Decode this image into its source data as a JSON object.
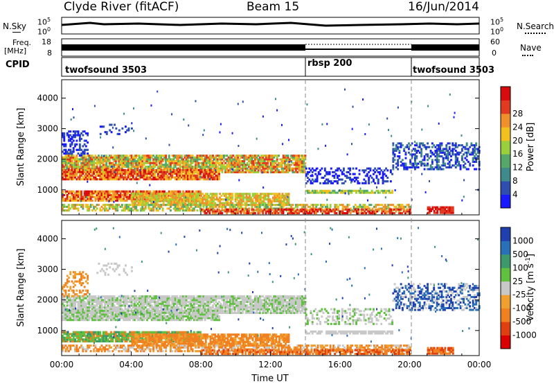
{
  "header": {
    "station": "Clyde River (fitACF)",
    "beam": "Beam 15",
    "date": "16/Jun/2014"
  },
  "left_labels": {
    "nsky": "N.Sky",
    "freq_top": "Freq.",
    "freq_unit": "[MHz]",
    "cpid": "CPID",
    "nsky_tick_top": "10^5",
    "nsky_tick_bottom": "10^0",
    "freq_tick_top": "18",
    "freq_tick_bottom": "8"
  },
  "right_labels": {
    "nsearch": "N.Search",
    "nave": "Nave",
    "nsearch_tick_top": "10^5",
    "nsearch_tick_bottom": "10^0",
    "nave_tick_top": "60",
    "nave_tick_bottom": "0"
  },
  "cpid_segments": [
    {
      "label": "twofsound 3503",
      "start_hour": 0
    },
    {
      "label": "rbsp 200",
      "start_hour": 14.0
    },
    {
      "label": "twofsound 3503",
      "start_hour": 20.0
    }
  ],
  "chart_data": [
    {
      "type": "heatmap",
      "name": "power",
      "ylabel": "Slant Range [km]",
      "xlim": [
        0,
        24
      ],
      "ylim": [
        180,
        4600
      ],
      "yticks": [
        1000,
        2000,
        3000,
        4000
      ],
      "colorbar": {
        "label": "Power [dB]",
        "ticks": [
          "4",
          "8",
          "12",
          "16",
          "20",
          "24",
          "28"
        ],
        "colors": [
          "#1a1aff",
          "#2f4fb0",
          "#3f8a8a",
          "#55a86a",
          "#9ad03c",
          "#f2c020",
          "#f0902a",
          "#e03a20",
          "#d80c0c"
        ]
      }
    },
    {
      "type": "heatmap",
      "name": "velocity",
      "ylabel": "Slant Range [km]",
      "xlabel": "Time UT",
      "xlim": [
        0,
        24
      ],
      "ylim": [
        180,
        4600
      ],
      "yticks": [
        1000,
        2000,
        3000,
        4000
      ],
      "xticks": [
        "00:00",
        "04:00",
        "08:00",
        "12:00",
        "16:00",
        "20:00",
        "00:00"
      ],
      "colorbar": {
        "label": "Velocity [m s-1]",
        "ticks": [
          "1000",
          "500",
          "100",
          "25",
          "-25",
          "-100",
          "-500",
          "-1000"
        ],
        "colors": [
          "#2040b0",
          "#2a70b8",
          "#3c9a6a",
          "#60c040",
          "#c8c8c8",
          "#f0a030",
          "#f08020",
          "#e04010",
          "#d80000"
        ]
      }
    }
  ]
}
